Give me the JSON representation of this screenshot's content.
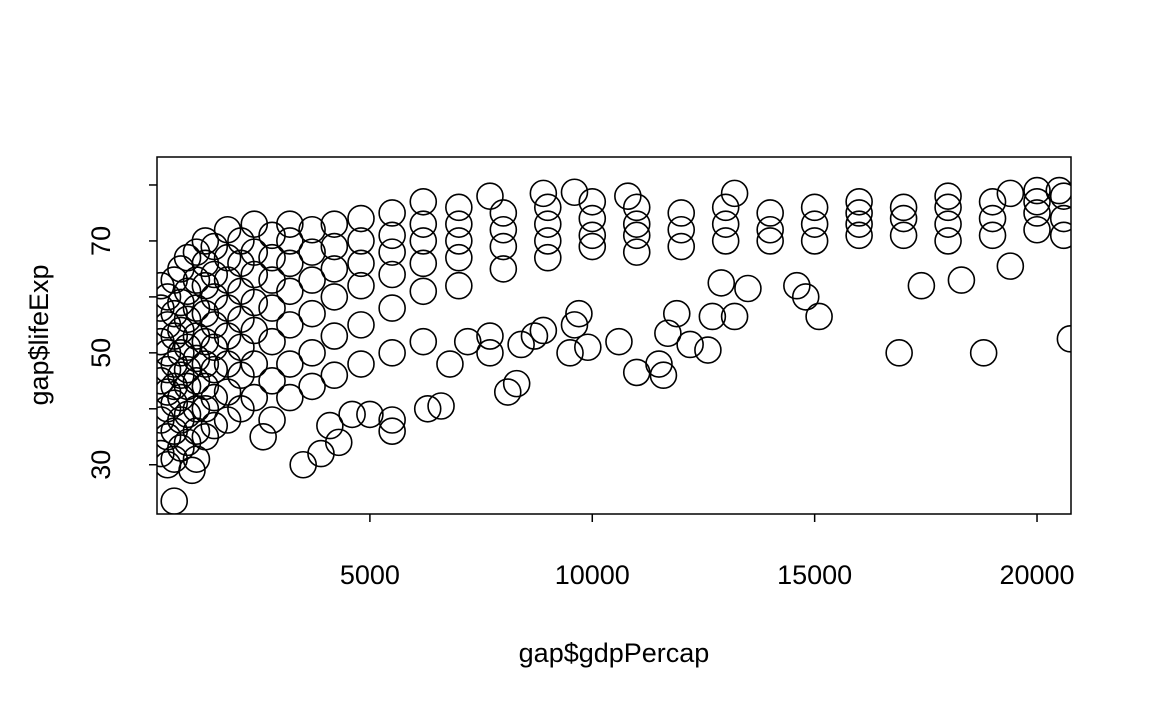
{
  "chart_data": {
    "type": "scatter",
    "xlabel": "gap$gdpPercap",
    "ylabel": "gap$lifeExp",
    "color": "#000000",
    "xlim": [
      213,
      20764
    ],
    "ylim": [
      21.2,
      85
    ],
    "xticks": [
      5000,
      10000,
      15000,
      20000
    ],
    "yticks": [
      30,
      50,
      70
    ],
    "yminorticks": [
      40,
      60,
      80
    ],
    "x": [
      300,
      300,
      300,
      300,
      300,
      300,
      450,
      450,
      450,
      450,
      450,
      450,
      450,
      450,
      600,
      600,
      600,
      600,
      600,
      600,
      600,
      600,
      750,
      750,
      750,
      750,
      750,
      750,
      750,
      750,
      900,
      900,
      900,
      900,
      900,
      900,
      900,
      900,
      1100,
      1100,
      1100,
      1100,
      1100,
      1100,
      1100,
      1100,
      1100,
      1300,
      1300,
      1300,
      1300,
      1300,
      1300,
      1300,
      1300,
      1300,
      1500,
      1500,
      1500,
      1500,
      1500,
      1500,
      1500,
      1500,
      1800,
      1800,
      1800,
      1800,
      1800,
      1800,
      1800,
      1800,
      2100,
      2100,
      2100,
      2100,
      2100,
      2100,
      2100,
      2400,
      2400,
      2400,
      2400,
      2400,
      2400,
      2400,
      2800,
      2800,
      2800,
      2800,
      2800,
      2800,
      2800,
      3200,
      3200,
      3200,
      3200,
      3200,
      3200,
      3200,
      3700,
      3700,
      3700,
      3700,
      3700,
      3700,
      4200,
      4200,
      4200,
      4200,
      4200,
      4200,
      4800,
      4800,
      4800,
      4800,
      4800,
      4800,
      5500,
      5500,
      5500,
      5500,
      5500,
      5500,
      6200,
      6200,
      6200,
      6200,
      6200,
      6200,
      7000,
      7000,
      7000,
      7000,
      7000,
      8000,
      8000,
      8000,
      8000,
      9000,
      9000,
      9000,
      9000,
      10000,
      10000,
      10000,
      10000,
      11000,
      11000,
      11000,
      11000,
      12000,
      12000,
      12000,
      13000,
      13000,
      13000,
      14000,
      14000,
      14000,
      15000,
      15000,
      15000,
      16000,
      16000,
      16000,
      16000,
      17000,
      17000,
      17000,
      18000,
      18000,
      18000,
      18000,
      19000,
      19000,
      19000,
      20000,
      20000,
      20000,
      20000,
      20600,
      20600,
      20600,
      3500,
      3900,
      4300,
      4100,
      4600,
      5000,
      5500,
      5500,
      6300,
      6600,
      6800,
      7200,
      7700,
      7700,
      8100,
      8300,
      8400,
      8700,
      8900,
      9500,
      9600,
      9700,
      9900,
      10600,
      11000,
      11500,
      11600,
      11700,
      11900,
      12200,
      12600,
      12700,
      13200,
      12900,
      13500,
      14600,
      14800,
      15100,
      17400,
      16900,
      18800,
      18300,
      19400,
      20750,
      600,
      1000,
      2600,
      7700,
      8900,
      9600,
      10800,
      13200,
      19400,
      20500
    ],
    "values": [
      32,
      38,
      45,
      52,
      58,
      62,
      30,
      35,
      40,
      43,
      47,
      50,
      55,
      60,
      31,
      36,
      41,
      44,
      48,
      53,
      57,
      63,
      33,
      38,
      42,
      46,
      50,
      54,
      59,
      65,
      34,
      39,
      44,
      47,
      51,
      56,
      61,
      67,
      31,
      36,
      40,
      45,
      49,
      53,
      58,
      63,
      68,
      35,
      40,
      44,
      48,
      52,
      57,
      62,
      66,
      70,
      37,
      42,
      47,
      51,
      55,
      60,
      64,
      69,
      38,
      43,
      48,
      53,
      58,
      63,
      67,
      72,
      40,
      46,
      51,
      56,
      61,
      66,
      70,
      42,
      48,
      54,
      59,
      64,
      68,
      73,
      38,
      45,
      52,
      58,
      63,
      67,
      71,
      42,
      48,
      55,
      61,
      66,
      70,
      73,
      44,
      50,
      57,
      63,
      68,
      72,
      46,
      53,
      60,
      65,
      69,
      73,
      48,
      55,
      62,
      66,
      70,
      74,
      50,
      58,
      64,
      68,
      71,
      75,
      52,
      61,
      66,
      70,
      73,
      77,
      62,
      67,
      70,
      73,
      76,
      65,
      69,
      72,
      75,
      67,
      70,
      73,
      76,
      69,
      71,
      74,
      77,
      68,
      71,
      73,
      76,
      69,
      72,
      75,
      70,
      73,
      76,
      70,
      72,
      75,
      70,
      73,
      76,
      71,
      73,
      75,
      77,
      71,
      74,
      76,
      70,
      73,
      76,
      78,
      71,
      74,
      77,
      72,
      75,
      77,
      79,
      71,
      74,
      78,
      30,
      32,
      34,
      37,
      39,
      39,
      38,
      36,
      40,
      40.5,
      48,
      52,
      50,
      53,
      43,
      44.5,
      51.5,
      53,
      54,
      50,
      55,
      57,
      51,
      52,
      46.5,
      48,
      46,
      53.5,
      57,
      51.5,
      50.5,
      56.5,
      56.5,
      62.5,
      61.5,
      62,
      60,
      56.5,
      62,
      50,
      50,
      63,
      65.5,
      52.5,
      23.5,
      29,
      35,
      78,
      78.5,
      78.7,
      78,
      78.5,
      78.5,
      79
    ]
  }
}
